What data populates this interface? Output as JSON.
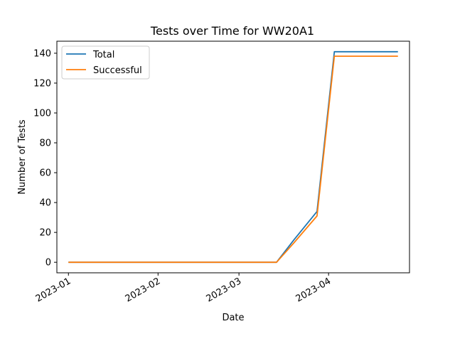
{
  "chart_data": {
    "type": "line",
    "title": "Tests over Time for WW20A1",
    "xlabel": "Date",
    "ylabel": "Number of Tests",
    "x": [
      "2023-01-01",
      "2023-03-14",
      "2023-03-20",
      "2023-03-28",
      "2023-04-03",
      "2023-04-25"
    ],
    "series": [
      {
        "name": "Total",
        "color": "#1f77b4",
        "values": [
          0,
          0,
          15,
          34,
          141,
          141
        ]
      },
      {
        "name": "Successful",
        "color": "#ff7f0e",
        "values": [
          0,
          0,
          13,
          31,
          138,
          138
        ]
      }
    ],
    "xlim": [
      "2022-12-28",
      "2023-04-29"
    ],
    "ylim": [
      -7.05,
      148.05
    ],
    "xticks": [
      {
        "label": "2023-01",
        "date": "2023-01-01"
      },
      {
        "label": "2023-02",
        "date": "2023-02-01"
      },
      {
        "label": "2023-03",
        "date": "2023-03-01"
      },
      {
        "label": "2023-04",
        "date": "2023-04-01"
      }
    ],
    "yticks": [
      0,
      20,
      40,
      60,
      80,
      100,
      120,
      140
    ],
    "grid": false,
    "legend_position": "upper-left"
  }
}
